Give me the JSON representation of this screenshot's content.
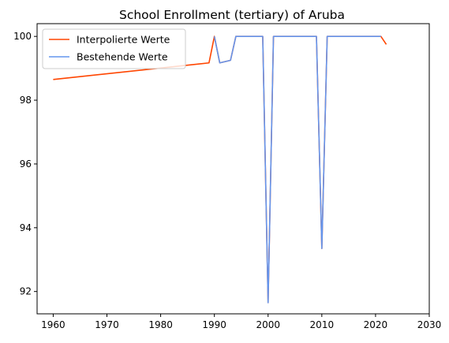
{
  "chart_data": {
    "type": "line",
    "title": "School Enrollment (tertiary) of Aruba",
    "xlabel": "",
    "ylabel": "",
    "xlim": [
      1957,
      2030
    ],
    "ylim": [
      91.3,
      100.4
    ],
    "x_ticks": [
      1960,
      1970,
      1980,
      1990,
      2000,
      2010,
      2020,
      2030
    ],
    "y_ticks": [
      92,
      94,
      96,
      98,
      100
    ],
    "grid": false,
    "legend_position": "top-left",
    "series": [
      {
        "name": "Interpolierte Werte",
        "color": "#ff4500",
        "x": [
          1960,
          1989,
          1990,
          1991,
          1993,
          1994,
          1999,
          2000,
          2001,
          2009,
          2010,
          2011,
          2021,
          2022
        ],
        "y": [
          98.65,
          99.17,
          100.0,
          99.17,
          99.25,
          100.0,
          100.0,
          91.65,
          100.0,
          100.0,
          93.35,
          100.0,
          100.0,
          99.75
        ]
      },
      {
        "name": "Bestehende Werte",
        "color": "#6495ed",
        "x": [
          1990,
          1991,
          1993,
          1994,
          1999,
          2000,
          2001,
          2009,
          2010,
          2011,
          2021
        ],
        "y": [
          100.0,
          99.17,
          99.25,
          100.0,
          100.0,
          91.65,
          100.0,
          100.0,
          93.35,
          100.0,
          100.0
        ]
      }
    ]
  }
}
